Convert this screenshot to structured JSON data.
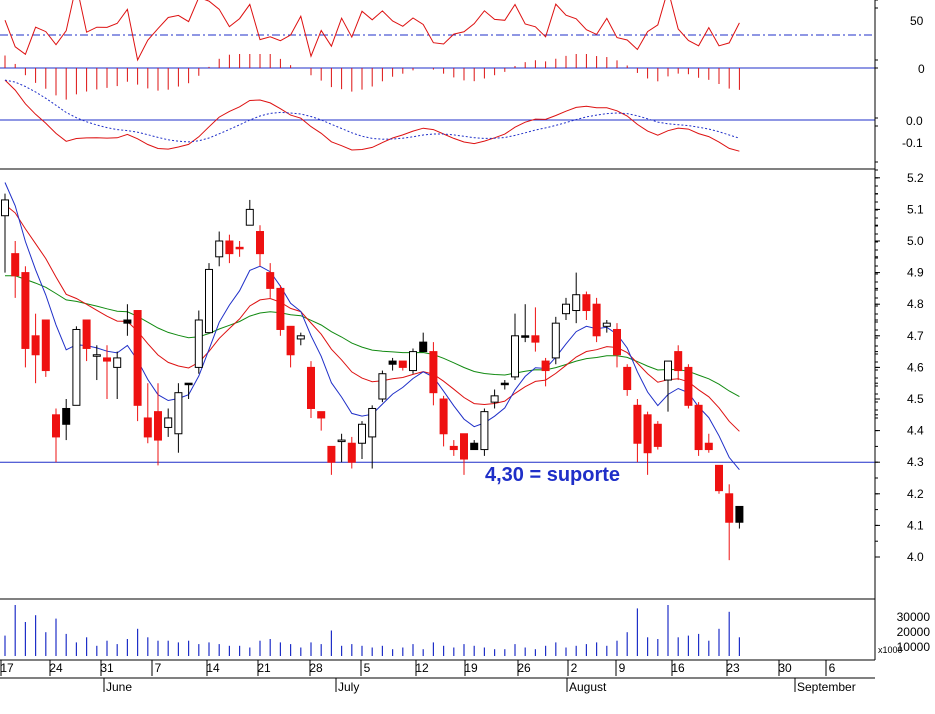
{
  "chart_data": {
    "type": "candlestick",
    "annotation": "4,30 = suporte",
    "support_level": 4.3,
    "price_axis": {
      "ticks": [
        4.0,
        4.1,
        4.2,
        4.3,
        4.4,
        4.5,
        4.6,
        4.7,
        4.8,
        4.9,
        5.0,
        5.1,
        5.2
      ],
      "range": [
        3.87,
        5.33
      ]
    },
    "rsi_axis": {
      "ticks": [
        "50"
      ],
      "reference_line": 20
    },
    "histogram_axis": {
      "ticks": [
        "0"
      ]
    },
    "macd_axis": {
      "ticks": [
        "0.0",
        "-0.1"
      ]
    },
    "volume_axis": {
      "ticks": [
        "30000",
        "20000",
        "10000"
      ],
      "multiplier": "x1000"
    },
    "x_day_labels": [
      "17",
      "24",
      "31",
      "7",
      "14",
      "21",
      "28",
      "5",
      "12",
      "19",
      "26",
      "2",
      "9",
      "16",
      "23",
      "30",
      "6"
    ],
    "months": [
      "June",
      "July",
      "August",
      "September"
    ],
    "candles": [
      {
        "o": 5.13,
        "h": 5.15,
        "l": 4.9,
        "c": 5.08,
        "dir": "up",
        "v": 12000
      },
      {
        "o": 4.96,
        "h": 5.0,
        "l": 4.82,
        "c": 4.89,
        "dir": "down",
        "v": 30000
      },
      {
        "o": 4.9,
        "h": 4.92,
        "l": 4.6,
        "c": 4.66,
        "dir": "down",
        "v": 20000
      },
      {
        "o": 4.7,
        "h": 4.77,
        "l": 4.55,
        "c": 4.64,
        "dir": "down",
        "v": 24000
      },
      {
        "o": 4.75,
        "h": 4.75,
        "l": 4.57,
        "c": 4.59,
        "dir": "down",
        "v": 14000
      },
      {
        "o": 4.38,
        "h": 4.47,
        "l": 4.3,
        "c": 4.45,
        "dir": "down",
        "v": 22000
      },
      {
        "o": 4.47,
        "h": 4.5,
        "l": 4.37,
        "c": 4.42,
        "dir": "black",
        "v": 13000
      },
      {
        "o": 4.48,
        "h": 4.73,
        "l": 4.48,
        "c": 4.72,
        "dir": "up",
        "v": 8000
      },
      {
        "o": 4.75,
        "h": 4.75,
        "l": 4.62,
        "c": 4.66,
        "dir": "down",
        "v": 11000
      },
      {
        "o": 4.64,
        "h": 4.67,
        "l": 4.56,
        "c": 4.64,
        "dir": "up",
        "v": 6000
      },
      {
        "o": 4.63,
        "h": 4.67,
        "l": 4.5,
        "c": 4.62,
        "dir": "down",
        "v": 9000
      },
      {
        "o": 4.6,
        "h": 4.65,
        "l": 4.5,
        "c": 4.63,
        "dir": "up",
        "v": 7000
      },
      {
        "o": 4.75,
        "h": 4.8,
        "l": 4.7,
        "c": 4.74,
        "dir": "black",
        "v": 10000
      },
      {
        "o": 4.78,
        "h": 4.78,
        "l": 4.43,
        "c": 4.48,
        "dir": "down",
        "v": 16000
      },
      {
        "o": 4.44,
        "h": 4.55,
        "l": 4.36,
        "c": 4.38,
        "dir": "down",
        "v": 11000
      },
      {
        "o": 4.46,
        "h": 4.55,
        "l": 4.29,
        "c": 4.37,
        "dir": "down",
        "v": 9000
      },
      {
        "o": 4.41,
        "h": 4.47,
        "l": 4.38,
        "c": 4.44,
        "dir": "up",
        "v": 9000
      },
      {
        "o": 4.39,
        "h": 4.55,
        "l": 4.33,
        "c": 4.52,
        "dir": "up",
        "v": 8000
      },
      {
        "o": 4.55,
        "h": 4.55,
        "l": 4.5,
        "c": 4.55,
        "dir": "black",
        "v": 9000
      },
      {
        "o": 4.6,
        "h": 4.78,
        "l": 4.58,
        "c": 4.75,
        "dir": "up",
        "v": 7000
      },
      {
        "o": 4.71,
        "h": 4.93,
        "l": 4.71,
        "c": 4.91,
        "dir": "up",
        "v": 8000
      },
      {
        "o": 4.95,
        "h": 5.03,
        "l": 4.92,
        "c": 5.0,
        "dir": "up",
        "v": 7000
      },
      {
        "o": 5.0,
        "h": 5.02,
        "l": 4.93,
        "c": 4.96,
        "dir": "down",
        "v": 6000
      },
      {
        "o": 4.98,
        "h": 5.0,
        "l": 4.95,
        "c": 4.98,
        "dir": "down",
        "v": 6000
      },
      {
        "o": 5.05,
        "h": 5.13,
        "l": 5.05,
        "c": 5.1,
        "dir": "up",
        "v": 5000
      },
      {
        "o": 5.03,
        "h": 5.05,
        "l": 4.92,
        "c": 4.96,
        "dir": "down",
        "v": 9000
      },
      {
        "o": 4.9,
        "h": 4.93,
        "l": 4.82,
        "c": 4.85,
        "dir": "down",
        "v": 10000
      },
      {
        "o": 4.85,
        "h": 4.86,
        "l": 4.7,
        "c": 4.72,
        "dir": "down",
        "v": 8000
      },
      {
        "o": 4.73,
        "h": 4.73,
        "l": 4.6,
        "c": 4.64,
        "dir": "down",
        "v": 7000
      },
      {
        "o": 4.69,
        "h": 4.71,
        "l": 4.67,
        "c": 4.7,
        "dir": "up",
        "v": 5000
      },
      {
        "o": 4.6,
        "h": 4.62,
        "l": 4.44,
        "c": 4.47,
        "dir": "down",
        "v": 8000
      },
      {
        "o": 4.46,
        "h": 4.46,
        "l": 4.4,
        "c": 4.44,
        "dir": "down",
        "v": 7000
      },
      {
        "o": 4.35,
        "h": 4.35,
        "l": 4.26,
        "c": 4.3,
        "dir": "down",
        "v": 15000
      },
      {
        "o": 4.37,
        "h": 4.39,
        "l": 4.3,
        "c": 4.37,
        "dir": "up",
        "v": 6000
      },
      {
        "o": 4.36,
        "h": 4.38,
        "l": 4.28,
        "c": 4.3,
        "dir": "down",
        "v": 7000
      },
      {
        "o": 4.36,
        "h": 4.43,
        "l": 4.31,
        "c": 4.42,
        "dir": "up",
        "v": 6000
      },
      {
        "o": 4.38,
        "h": 4.48,
        "l": 4.28,
        "c": 4.47,
        "dir": "up",
        "v": 5000
      },
      {
        "o": 4.5,
        "h": 4.59,
        "l": 4.49,
        "c": 4.58,
        "dir": "up",
        "v": 6000
      },
      {
        "o": 4.62,
        "h": 4.63,
        "l": 4.59,
        "c": 4.61,
        "dir": "black",
        "v": 4000
      },
      {
        "o": 4.62,
        "h": 4.62,
        "l": 4.59,
        "c": 4.6,
        "dir": "down",
        "v": 5000
      },
      {
        "o": 4.59,
        "h": 4.66,
        "l": 4.58,
        "c": 4.65,
        "dir": "up",
        "v": 7000
      },
      {
        "o": 4.68,
        "h": 4.71,
        "l": 4.65,
        "c": 4.65,
        "dir": "black",
        "v": 4000
      },
      {
        "o": 4.65,
        "h": 4.68,
        "l": 4.48,
        "c": 4.52,
        "dir": "down",
        "v": 8000
      },
      {
        "o": 4.5,
        "h": 4.51,
        "l": 4.35,
        "c": 4.39,
        "dir": "down",
        "v": 6000
      },
      {
        "o": 4.35,
        "h": 4.37,
        "l": 4.32,
        "c": 4.34,
        "dir": "down",
        "v": 5000
      },
      {
        "o": 4.39,
        "h": 4.39,
        "l": 4.26,
        "c": 4.31,
        "dir": "down",
        "v": 7000
      },
      {
        "o": 4.36,
        "h": 4.37,
        "l": 4.34,
        "c": 4.34,
        "dir": "black",
        "v": 6000
      },
      {
        "o": 4.34,
        "h": 4.47,
        "l": 4.32,
        "c": 4.46,
        "dir": "up",
        "v": 5000
      },
      {
        "o": 4.49,
        "h": 4.53,
        "l": 4.47,
        "c": 4.51,
        "dir": "up",
        "v": 4000
      },
      {
        "o": 4.55,
        "h": 4.56,
        "l": 4.53,
        "c": 4.55,
        "dir": "black",
        "v": 4000
      },
      {
        "o": 4.57,
        "h": 4.77,
        "l": 4.56,
        "c": 4.7,
        "dir": "up",
        "v": 7000
      },
      {
        "o": 4.7,
        "h": 4.8,
        "l": 4.68,
        "c": 4.7,
        "dir": "black",
        "v": 5000
      },
      {
        "o": 4.7,
        "h": 4.79,
        "l": 4.65,
        "c": 4.68,
        "dir": "down",
        "v": 4000
      },
      {
        "o": 4.62,
        "h": 4.63,
        "l": 4.54,
        "c": 4.59,
        "dir": "down",
        "v": 6000
      },
      {
        "o": 4.63,
        "h": 4.76,
        "l": 4.61,
        "c": 4.74,
        "dir": "up",
        "v": 8000
      },
      {
        "o": 4.77,
        "h": 4.82,
        "l": 4.75,
        "c": 4.8,
        "dir": "up",
        "v": 5000
      },
      {
        "o": 4.78,
        "h": 4.9,
        "l": 4.74,
        "c": 4.83,
        "dir": "up",
        "v": 6000
      },
      {
        "o": 4.83,
        "h": 4.84,
        "l": 4.75,
        "c": 4.78,
        "dir": "down",
        "v": 7000
      },
      {
        "o": 4.8,
        "h": 4.82,
        "l": 4.68,
        "c": 4.7,
        "dir": "down",
        "v": 8000
      },
      {
        "o": 4.73,
        "h": 4.75,
        "l": 4.71,
        "c": 4.74,
        "dir": "up",
        "v": 6000
      },
      {
        "o": 4.72,
        "h": 4.74,
        "l": 4.6,
        "c": 4.64,
        "dir": "down",
        "v": 9000
      },
      {
        "o": 4.6,
        "h": 4.61,
        "l": 4.51,
        "c": 4.53,
        "dir": "down",
        "v": 14000
      },
      {
        "o": 4.48,
        "h": 4.5,
        "l": 4.3,
        "c": 4.36,
        "dir": "down",
        "v": 28000
      },
      {
        "o": 4.45,
        "h": 4.46,
        "l": 4.26,
        "c": 4.33,
        "dir": "down",
        "v": 11000
      },
      {
        "o": 4.42,
        "h": 4.43,
        "l": 4.34,
        "c": 4.35,
        "dir": "down",
        "v": 10000
      },
      {
        "o": 4.56,
        "h": 4.62,
        "l": 4.46,
        "c": 4.62,
        "dir": "up",
        "v": 30000
      },
      {
        "o": 4.65,
        "h": 4.67,
        "l": 4.56,
        "c": 4.59,
        "dir": "down",
        "v": 11000
      },
      {
        "o": 4.6,
        "h": 4.61,
        "l": 4.47,
        "c": 4.48,
        "dir": "down",
        "v": 12000
      },
      {
        "o": 4.48,
        "h": 4.49,
        "l": 4.32,
        "c": 4.34,
        "dir": "down",
        "v": 13000
      },
      {
        "o": 4.36,
        "h": 4.39,
        "l": 4.33,
        "c": 4.34,
        "dir": "down",
        "v": 9000
      },
      {
        "o": 4.29,
        "h": 4.29,
        "l": 4.2,
        "c": 4.21,
        "dir": "down",
        "v": 16000
      },
      {
        "o": 4.2,
        "h": 4.23,
        "l": 3.99,
        "c": 4.11,
        "dir": "down",
        "v": 26000
      },
      {
        "o": 4.11,
        "h": 4.16,
        "l": 4.09,
        "c": 4.16,
        "dir": "black",
        "v": 11000
      }
    ]
  }
}
